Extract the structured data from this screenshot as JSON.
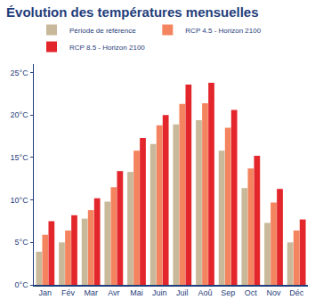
{
  "chart_data": {
    "type": "bar",
    "title": "Évolution des températures mensuelles",
    "categories": [
      "Jan",
      "Fév",
      "Mar",
      "Avr",
      "Mai",
      "Juin",
      "Juil",
      "Aoû",
      "Sep",
      "Oct",
      "Nov",
      "Déc"
    ],
    "series": [
      {
        "name": "Période de référence",
        "color": "#c9b99b",
        "values": [
          3.9,
          5.0,
          7.8,
          9.8,
          13.3,
          16.6,
          18.9,
          19.4,
          15.8,
          11.4,
          7.3,
          5.0
        ]
      },
      {
        "name": "RCP 4.5 - Horizon 2100",
        "color": "#f4845f",
        "values": [
          5.9,
          6.4,
          8.8,
          11.5,
          15.8,
          18.8,
          21.3,
          21.4,
          18.5,
          13.7,
          9.7,
          6.4
        ]
      },
      {
        "name": "RCP 8.5 - Horizon 2100",
        "color": "#e3262b",
        "values": [
          7.5,
          8.2,
          10.2,
          13.4,
          17.3,
          20.0,
          23.6,
          23.8,
          20.6,
          15.2,
          11.3,
          7.7
        ]
      }
    ],
    "ylim": [
      0,
      26
    ],
    "yticks": [
      {
        "value": 0,
        "label": "0°C"
      },
      {
        "value": 5,
        "label": "5°C"
      },
      {
        "value": 10,
        "label": "10°C"
      },
      {
        "value": 15,
        "label": "15°C"
      },
      {
        "value": 20,
        "label": "20°C"
      },
      {
        "value": 25,
        "label": "25°C"
      }
    ],
    "grid": false,
    "legend": "top"
  }
}
